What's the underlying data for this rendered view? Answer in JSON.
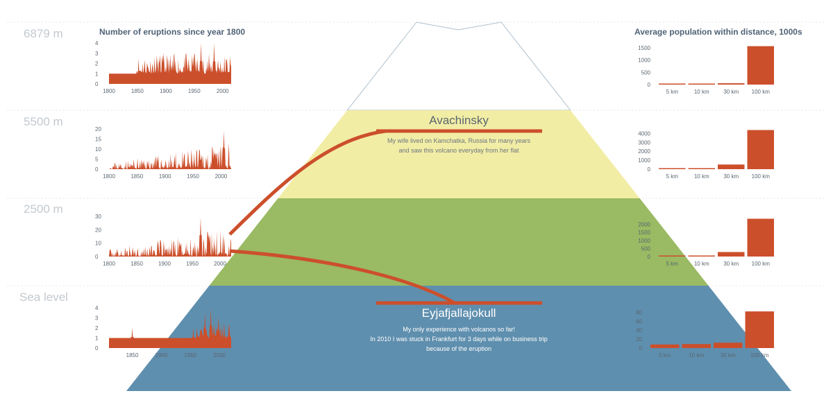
{
  "colors": {
    "accent": "#cc4f2b",
    "band_top": "#ffffff",
    "band_upper": "#f2eda5",
    "band_middle": "#9aba63",
    "band_lower": "#5f8fae",
    "label_gray": "#c3c9cf",
    "text_dark": "#5a6670",
    "title": "#4f6275"
  },
  "titles": {
    "left": "Number of eruptions since year 1800",
    "right": "Average population within distance, 1000s"
  },
  "bands": [
    {
      "label": "6879 m"
    },
    {
      "label": "5500 m"
    },
    {
      "label": "2500 m"
    },
    {
      "label": "Sea level"
    }
  ],
  "volcanoes": {
    "avachinsky": {
      "name": "Avachinsky",
      "note": [
        "My wife lived on Kamchatka, Russia for many years",
        "and saw this volcano everyday from her flat"
      ]
    },
    "eyjafjallajokull": {
      "name": "Eyjafjallajokull",
      "note": [
        "My only experience with volcanos so far!",
        "In 2010 I was stuck in Frankfurt for 3 days while on business trip",
        "because of the eruption"
      ]
    }
  },
  "chart_data": [
    {
      "type": "area",
      "band": 0,
      "series": "eruptions",
      "x_range": [
        1800,
        2015
      ],
      "ylim": [
        0,
        4
      ],
      "yticks": [
        0,
        1,
        2,
        3,
        4
      ],
      "xticks": [
        1800,
        1850,
        1900,
        1950,
        2000
      ],
      "baseline": 1,
      "baseline_start": 1800,
      "noise_start": 1848,
      "noise_max": 3,
      "spikes": [
        [
          1985,
          4
        ],
        [
          1962,
          4
        ],
        [
          1950,
          3
        ]
      ],
      "seed": 11
    },
    {
      "type": "area",
      "band": 1,
      "series": "eruptions",
      "x_range": [
        1800,
        2018
      ],
      "ylim": [
        0,
        20
      ],
      "yticks": [
        0,
        5,
        10,
        15,
        20
      ],
      "xticks": [
        1800,
        1850,
        1900,
        1950,
        2000
      ],
      "baseline": 0,
      "baseline_start": 1800,
      "noise_start": 1800,
      "noise_max": 13,
      "growth": true,
      "spikes": [
        [
          2005,
          19
        ]
      ],
      "seed": 23
    },
    {
      "type": "area",
      "band": 2,
      "series": "eruptions",
      "x_range": [
        1800,
        2020
      ],
      "ylim": [
        0,
        30
      ],
      "yticks": [
        0,
        10,
        20,
        30
      ],
      "xticks": [
        1800,
        1850,
        1900,
        1950,
        2000
      ],
      "baseline": 0,
      "baseline_start": 1800,
      "noise_start": 1800,
      "noise_max": 22,
      "growth": true,
      "spikes": [
        [
          1965,
          29
        ]
      ],
      "seed": 37
    },
    {
      "type": "area",
      "band": 3,
      "series": "eruptions",
      "x_range": [
        1810,
        2020
      ],
      "ylim": [
        0,
        4
      ],
      "yticks": [
        0,
        1,
        2,
        3,
        4
      ],
      "xticks": [
        1850,
        1900,
        1950,
        2000
      ],
      "baseline": 1,
      "baseline_start": 1810,
      "noise_start": 1960,
      "noise_max": 3,
      "spikes": [
        [
          1850,
          2
        ],
        [
          1985,
          4
        ],
        [
          1975,
          3.5
        ],
        [
          1998,
          3.2
        ],
        [
          1955,
          2
        ]
      ],
      "seed": 51
    },
    {
      "type": "bar",
      "band": 0,
      "series": "population",
      "categories": [
        "5 km",
        "10 km",
        "30 km",
        "100 km"
      ],
      "values": [
        2,
        10,
        55,
        1570
      ],
      "ylim": [
        0,
        1700
      ],
      "yticks": [
        0,
        500,
        1000,
        1500
      ]
    },
    {
      "type": "bar",
      "band": 1,
      "series": "population",
      "categories": [
        "5 km",
        "10 km",
        "30 km",
        "100 km"
      ],
      "values": [
        40,
        90,
        520,
        4380
      ],
      "ylim": [
        0,
        4500
      ],
      "yticks": [
        0,
        1000,
        2000,
        3000,
        4000
      ]
    },
    {
      "type": "bar",
      "band": 2,
      "series": "population",
      "categories": [
        "5 km",
        "10 km",
        "30 km",
        "100 km"
      ],
      "values": [
        30,
        60,
        280,
        2350
      ],
      "ylim": [
        0,
        2500
      ],
      "yticks": [
        0,
        500,
        1000,
        1500,
        2000
      ]
    },
    {
      "type": "bar",
      "band": 3,
      "series": "population",
      "categories": [
        "5 km",
        "10 km",
        "30 km",
        "100 km"
      ],
      "values": [
        8,
        9,
        12,
        82
      ],
      "ylim": [
        0,
        90
      ],
      "yticks": [
        0,
        20,
        40,
        60,
        80
      ]
    }
  ]
}
